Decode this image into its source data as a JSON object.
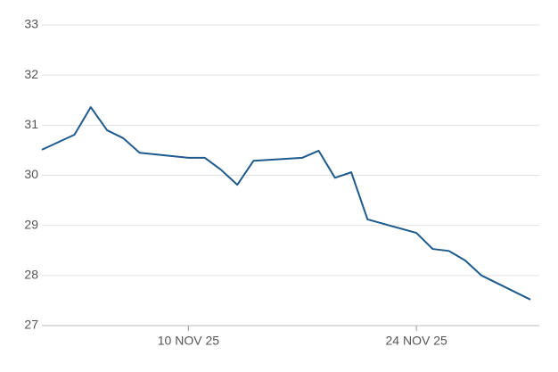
{
  "chart_data": {
    "type": "line",
    "x": [
      "2025-11-01",
      "2025-11-03",
      "2025-11-04",
      "2025-11-05",
      "2025-11-06",
      "2025-11-07",
      "2025-11-10",
      "2025-11-11",
      "2025-11-12",
      "2025-11-13",
      "2025-11-14",
      "2025-11-17",
      "2025-11-18",
      "2025-11-19",
      "2025-11-20",
      "2025-11-21",
      "2025-11-24",
      "2025-11-25",
      "2025-11-26",
      "2025-11-27",
      "2025-11-28",
      "2025-12-01"
    ],
    "series": [
      {
        "color": "#1f5a8c",
        "values": [
          30.51,
          30.81,
          31.36,
          30.9,
          30.74,
          30.45,
          30.35,
          30.35,
          30.11,
          29.81,
          30.29,
          30.35,
          30.49,
          29.95,
          30.06,
          29.12,
          28.85,
          28.53,
          28.49,
          28.3,
          28.0,
          27.52
        ]
      }
    ],
    "xlim": [
      "2025-11-01",
      "2025-12-01"
    ],
    "xticks": [
      {
        "value": "2025-11-10",
        "label": "10 NOV 25"
      },
      {
        "value": "2025-11-24",
        "label": "24 NOV 25"
      }
    ],
    "ylim": [
      27,
      33
    ],
    "yticks": [
      27,
      28,
      29,
      30,
      31,
      32,
      33
    ],
    "grid": true
  }
}
